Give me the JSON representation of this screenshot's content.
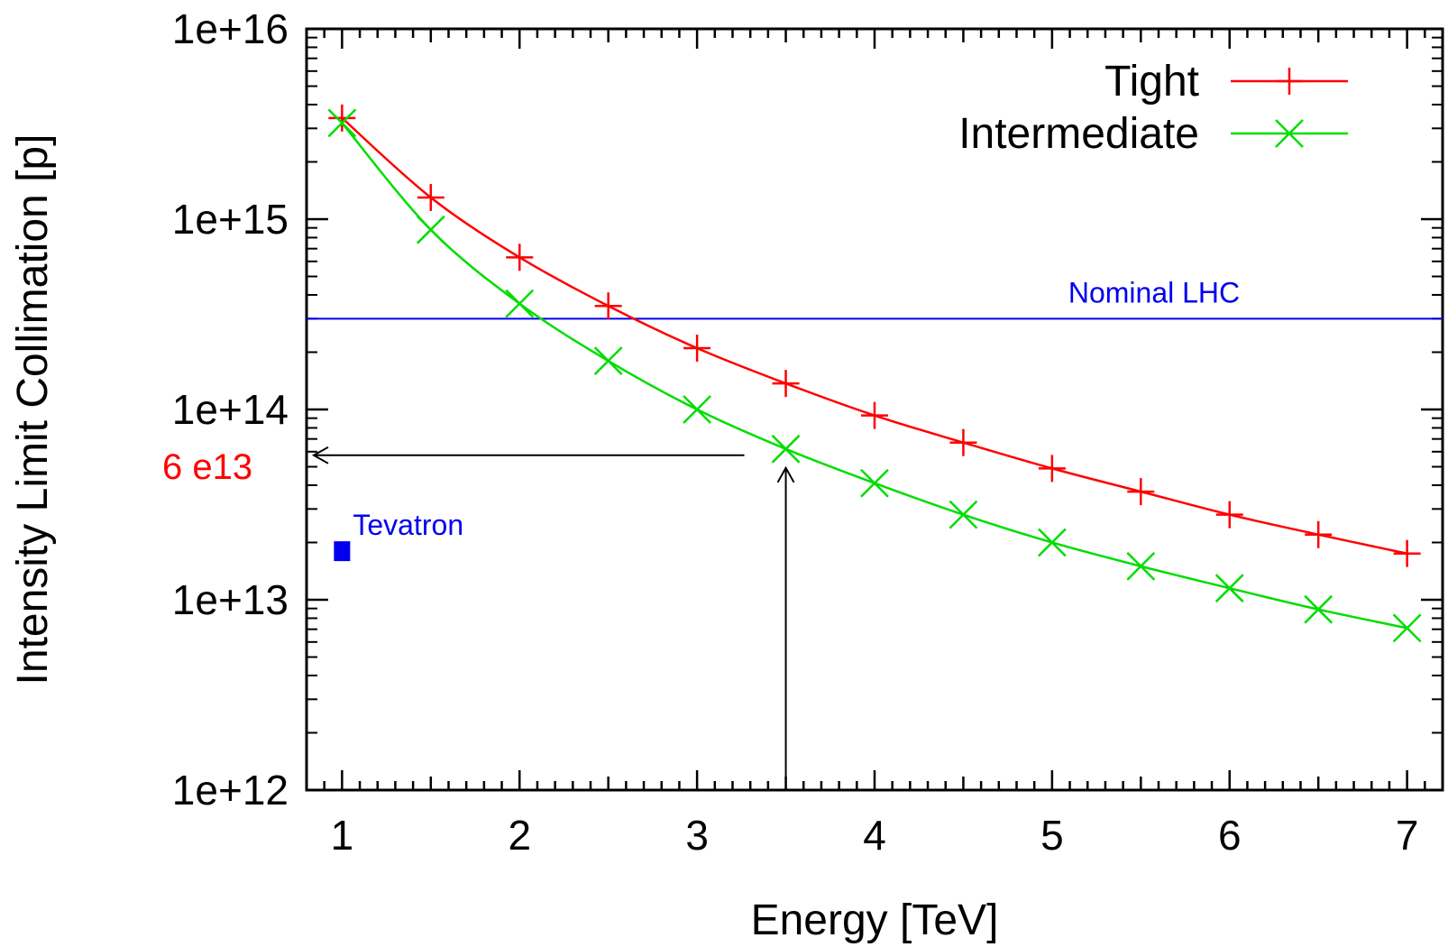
{
  "chart_data": {
    "type": "line",
    "title": "",
    "xlabel": "Energy [TeV]",
    "ylabel": "Intensity Limit Collimation [p]",
    "xlim": [
      0.8,
      7.2
    ],
    "ylim": [
      1000000000000.0,
      1e+16
    ],
    "yscale": "log",
    "xticks": [
      1,
      2,
      3,
      4,
      5,
      6,
      7
    ],
    "xtick_labels": [
      "1",
      "2",
      "3",
      "4",
      "5",
      "6",
      "7"
    ],
    "yticks": [
      1000000000000.0,
      10000000000000.0,
      100000000000000.0,
      1000000000000000.0,
      1e+16
    ],
    "ytick_labels": [
      "1e+12",
      "1e+13",
      "1e+14",
      "1e+15",
      "1e+16"
    ],
    "grid": false,
    "legend_position": "top-right",
    "x": [
      1,
      1.5,
      2,
      2.5,
      3,
      3.5,
      4,
      4.5,
      5,
      5.5,
      6,
      6.5,
      7
    ],
    "series": [
      {
        "name": "Tight",
        "color": "#ff0000",
        "marker": "plus",
        "values": [
          3400000000000000.0,
          1300000000000000.0,
          630000000000000.0,
          350000000000000.0,
          210000000000000.0,
          137000000000000.0,
          93000000000000.0,
          67000000000000.0,
          49000000000000.0,
          37000000000000.0,
          28000000000000.0,
          22000000000000.0,
          17500000000000.0
        ]
      },
      {
        "name": "Intermediate",
        "color": "#00dd00",
        "marker": "cross",
        "values": [
          3200000000000000.0,
          880000000000000.0,
          360000000000000.0,
          180000000000000.0,
          100000000000000.0,
          62000000000000.0,
          41000000000000.0,
          28000000000000.0,
          20000000000000.0,
          15000000000000.0,
          11500000000000.0,
          8900000000000.0,
          7100000000000.0
        ]
      }
    ],
    "reference_lines": [
      {
        "label": "Nominal LHC",
        "y": 300000000000000.0,
        "color": "#0000ee"
      }
    ],
    "points": [
      {
        "label": "Tevatron",
        "x": 1,
        "y": 18000000000000.0,
        "color": "#0000ee"
      }
    ],
    "annotations": [
      {
        "text": "6 e13",
        "y": 60000000000000.0,
        "x": 3.5,
        "color": "#ff0000"
      }
    ]
  }
}
